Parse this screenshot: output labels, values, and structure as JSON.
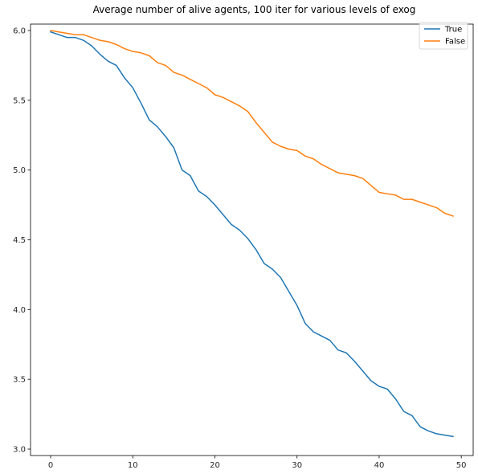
{
  "chart_data": {
    "type": "line",
    "title": "Average number of alive agents, 100 iter for various levels of exog",
    "xlabel": "",
    "ylabel": "",
    "xlim": [
      -2.45,
      51.45
    ],
    "ylim": [
      2.954,
      6.046
    ],
    "x_ticks": [
      0,
      10,
      20,
      30,
      40,
      50
    ],
    "y_ticks": [
      3.0,
      3.5,
      4.0,
      4.5,
      5.0,
      5.5,
      6.0
    ],
    "grid": false,
    "legend_position": "top-right",
    "x": [
      0,
      1,
      2,
      3,
      4,
      5,
      6,
      7,
      8,
      9,
      10,
      11,
      12,
      13,
      14,
      15,
      16,
      17,
      18,
      19,
      20,
      21,
      22,
      23,
      24,
      25,
      26,
      27,
      28,
      29,
      30,
      31,
      32,
      33,
      34,
      35,
      36,
      37,
      38,
      39,
      40,
      41,
      42,
      43,
      44,
      45,
      46,
      47,
      48,
      49
    ],
    "series": [
      {
        "name": "True",
        "color": "#1f77b4",
        "values": [
          5.99,
          5.97,
          5.95,
          5.95,
          5.93,
          5.89,
          5.83,
          5.78,
          5.75,
          5.66,
          5.59,
          5.48,
          5.36,
          5.31,
          5.24,
          5.16,
          5.0,
          4.96,
          4.85,
          4.81,
          4.75,
          4.68,
          4.61,
          4.57,
          4.51,
          4.43,
          4.33,
          4.29,
          4.23,
          4.13,
          4.03,
          3.9,
          3.84,
          3.81,
          3.78,
          3.71,
          3.69,
          3.63,
          3.56,
          3.49,
          3.45,
          3.43,
          3.36,
          3.27,
          3.24,
          3.16,
          3.13,
          3.11,
          3.1,
          3.09
        ]
      },
      {
        "name": "False",
        "color": "#ff7f0e",
        "values": [
          6.0,
          5.99,
          5.98,
          5.97,
          5.97,
          5.95,
          5.93,
          5.92,
          5.9,
          5.87,
          5.85,
          5.84,
          5.82,
          5.77,
          5.75,
          5.7,
          5.68,
          5.65,
          5.62,
          5.59,
          5.54,
          5.52,
          5.49,
          5.46,
          5.42,
          5.34,
          5.27,
          5.2,
          5.17,
          5.15,
          5.14,
          5.1,
          5.08,
          5.04,
          5.01,
          4.98,
          4.97,
          4.96,
          4.94,
          4.89,
          4.84,
          4.83,
          4.82,
          4.79,
          4.79,
          4.77,
          4.75,
          4.73,
          4.69,
          4.67
        ]
      }
    ]
  }
}
